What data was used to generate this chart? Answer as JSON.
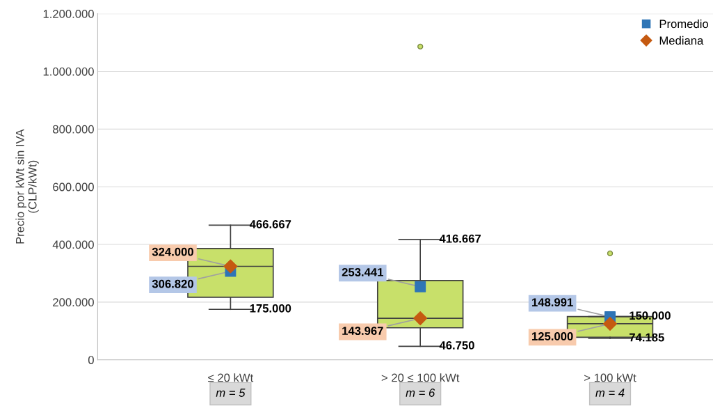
{
  "chart_data": {
    "type": "box",
    "ylabel": "Precio por kWt sin IVA\n(CLP/kWt)",
    "categories": [
      "≤ 20 kWt",
      "> 20 ≤ 100 kWt",
      "> 100 kWt"
    ],
    "ylim": [
      0,
      1200000
    ],
    "yticks": [
      0,
      {
        "value": 200000,
        "label": "200.000"
      },
      {
        "value": 400000,
        "label": "400.000"
      },
      {
        "value": 600000,
        "label": "600.000"
      },
      {
        "value": 800000,
        "label": "800.000"
      },
      {
        "value": 1000000,
        "label": "1.000.000"
      },
      {
        "value": 1200000,
        "label": "1.200.000"
      }
    ],
    "grid": "y",
    "legend": "top right",
    "series": [
      {
        "color": "#c8e06a",
        "boxes": [
          {
            "low": 175000,
            "q1": 217000,
            "median": 324000,
            "q3": 386000,
            "high": 466667
          },
          {
            "low": 46750,
            "q1": 111000,
            "median": 143967,
            "q3": 275000,
            "high": 416667,
            "outliers": [
              1086000
            ]
          },
          {
            "low": 74185,
            "q1": 78000,
            "median": 125000,
            "q3": 150000,
            "high": 150000,
            "outliers": [
              369000
            ]
          }
        ]
      },
      {
        "type": "scatter",
        "name": "Promedio",
        "color": "#2e75b6",
        "marker": "square",
        "x": [
          "≤ 20 kWt",
          "> 20 ≤ 100 kWt",
          "> 100 kWt"
        ],
        "values": [
          306820,
          253441,
          148991
        ],
        "value_labels": [
          "306.820",
          "253.441",
          "148.991"
        ]
      },
      {
        "type": "scatter",
        "name": "Mediana",
        "color": "#c55a11",
        "marker": "diamond",
        "x": [
          "≤ 20 kWt",
          "> 20 ≤ 100 kWt",
          "> 100 kWt"
        ],
        "values": [
          324000,
          143967,
          125000
        ],
        "value_labels": [
          "324.000",
          "143.967",
          "125.000"
        ]
      }
    ],
    "annotations": [
      {
        "text": "466.667",
        "x": "≤ 20 kWt",
        "y": 466667
      },
      {
        "text": "175.000",
        "x": "≤ 20 kWt",
        "y": 175000
      },
      {
        "text": "416.667",
        "x": "> 20 ≤ 100 kWt",
        "y": 416667
      },
      {
        "text": "46.750",
        "x": "> 20 ≤ 100 kWt",
        "y": 46750
      },
      {
        "text": "150.000",
        "x": "> 100 kWt",
        "y": 150000
      },
      {
        "text": "74.185",
        "x": "> 100 kWt",
        "y": 74185
      },
      "m = 5",
      "m = 6",
      "m = 4"
    ]
  }
}
